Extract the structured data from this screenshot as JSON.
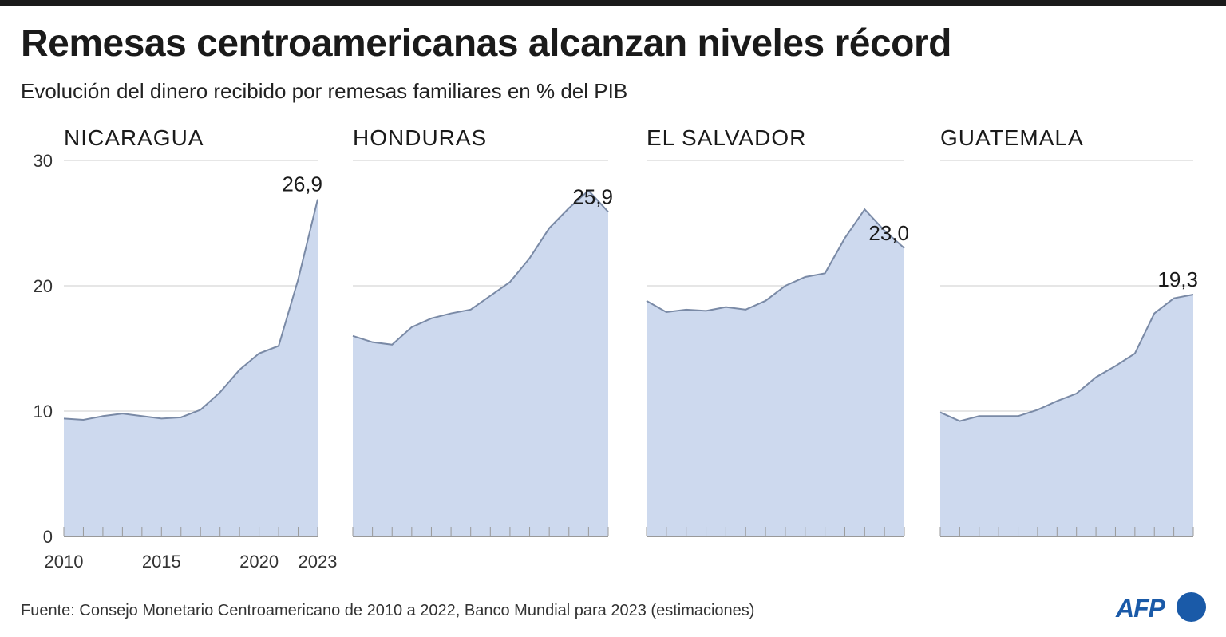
{
  "title": "Remesas centroamericanas alcanzan niveles récord",
  "subtitle": "Evolución del dinero recibido por remesas familiares en % del PIB",
  "source": "Fuente: Consejo Monetario Centroamericano de 2010 a 2022, Banco Mundial para 2023 (estimaciones)",
  "logo": {
    "text": "AFP"
  },
  "colors": {
    "area": "#cdd9ee",
    "line": "#7a8aa6",
    "grid": "#cccccc",
    "axis": "#999999",
    "logo": "#1a5aa8"
  },
  "chart_data": [
    {
      "type": "area",
      "title": "NICARAGUA",
      "x": [
        2010,
        2011,
        2012,
        2013,
        2014,
        2015,
        2016,
        2017,
        2018,
        2019,
        2020,
        2021,
        2022,
        2023
      ],
      "values": [
        9.4,
        9.3,
        9.6,
        9.8,
        9.6,
        9.4,
        9.5,
        10.1,
        11.5,
        13.3,
        14.6,
        15.2,
        20.5,
        26.9
      ],
      "last_label": "26,9",
      "ylim": [
        0,
        30
      ],
      "yticks": [
        "0",
        "10",
        "20",
        "30"
      ],
      "xticks": [
        "2010",
        "2015",
        "2020",
        "2023"
      ],
      "grid": true
    },
    {
      "type": "area",
      "title": "HONDURAS",
      "x": [
        2010,
        2011,
        2012,
        2013,
        2014,
        2015,
        2016,
        2017,
        2018,
        2019,
        2020,
        2021,
        2022,
        2023
      ],
      "values": [
        16.0,
        15.5,
        15.3,
        16.7,
        17.4,
        17.8,
        18.1,
        19.2,
        20.3,
        22.2,
        24.6,
        26.2,
        27.6,
        25.9
      ],
      "last_label": "25,9",
      "ylim": [
        0,
        30
      ],
      "grid": true
    },
    {
      "type": "area",
      "title": "EL SALVADOR",
      "x": [
        2010,
        2011,
        2012,
        2013,
        2014,
        2015,
        2016,
        2017,
        2018,
        2019,
        2020,
        2021,
        2022,
        2023
      ],
      "values": [
        18.8,
        17.9,
        18.1,
        18.0,
        18.3,
        18.1,
        18.8,
        20.0,
        20.7,
        21.0,
        23.8,
        26.1,
        24.4,
        23.0
      ],
      "last_label": "23,0",
      "ylim": [
        0,
        30
      ],
      "grid": true
    },
    {
      "type": "area",
      "title": "GUATEMALA",
      "x": [
        2010,
        2011,
        2012,
        2013,
        2014,
        2015,
        2016,
        2017,
        2018,
        2019,
        2020,
        2021,
        2022,
        2023
      ],
      "values": [
        9.9,
        9.2,
        9.6,
        9.6,
        9.6,
        10.1,
        10.8,
        11.4,
        12.7,
        13.6,
        14.6,
        17.8,
        19.0,
        19.3
      ],
      "last_label": "19,3",
      "ylim": [
        0,
        30
      ],
      "grid": true
    }
  ]
}
